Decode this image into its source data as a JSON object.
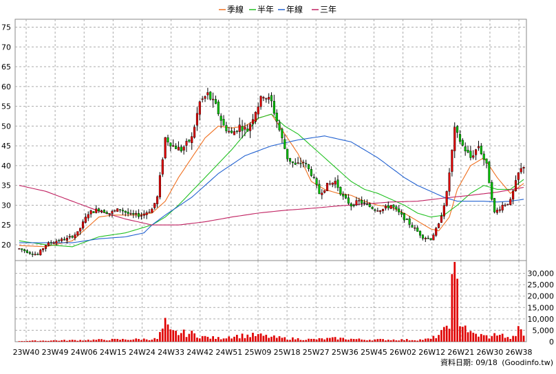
{
  "chart_data": {
    "type": "candlestick",
    "legend": [
      {
        "name": "季線",
        "color": "#f07020"
      },
      {
        "name": "半年",
        "color": "#20c020"
      },
      {
        "name": "年線",
        "color": "#2060d0"
      },
      {
        "name": "三年",
        "color": "#c02060"
      }
    ],
    "x_tick_labels": [
      "23W40",
      "23W49",
      "24W06",
      "24W15",
      "24W24",
      "24W33",
      "24W42",
      "24W51",
      "25W09",
      "25W18",
      "25W27",
      "25W36",
      "25W45",
      "26W02",
      "26W12",
      "26W21",
      "26W30",
      "26W38"
    ],
    "price_axis": {
      "ylim": [
        16,
        77
      ],
      "ticks": [
        20,
        25,
        30,
        35,
        40,
        45,
        50,
        55,
        60,
        65,
        70,
        75
      ]
    },
    "volume_axis": {
      "ylim": [
        0,
        35000
      ],
      "ticks": [
        "0",
        "5,000",
        "10,000",
        "15,000",
        "20,000",
        "25,000",
        "30,000"
      ],
      "tick_values": [
        0,
        5000,
        10000,
        15000,
        20000,
        25000,
        30000
      ]
    },
    "price_keypoints": [
      [
        0,
        19
      ],
      [
        4,
        18
      ],
      [
        7,
        17.5
      ],
      [
        10,
        20
      ],
      [
        14,
        21
      ],
      [
        18,
        21.5
      ],
      [
        22,
        23
      ],
      [
        26,
        28
      ],
      [
        30,
        29
      ],
      [
        34,
        28
      ],
      [
        38,
        29
      ],
      [
        42,
        27.5
      ],
      [
        46,
        27.5
      ],
      [
        50,
        29
      ],
      [
        52,
        32
      ],
      [
        55,
        47
      ],
      [
        58,
        45
      ],
      [
        61,
        44
      ],
      [
        65,
        47
      ],
      [
        68,
        56
      ],
      [
        71,
        58
      ],
      [
        74,
        55
      ],
      [
        77,
        50
      ],
      [
        80,
        48
      ],
      [
        83,
        50
      ],
      [
        86,
        49
      ],
      [
        89,
        54
      ],
      [
        92,
        58
      ],
      [
        95,
        56
      ],
      [
        98,
        49
      ],
      [
        101,
        42
      ],
      [
        104,
        40
      ],
      [
        107,
        41
      ],
      [
        110,
        38
      ],
      [
        113,
        33
      ],
      [
        116,
        35
      ],
      [
        119,
        36
      ],
      [
        122,
        32
      ],
      [
        125,
        30
      ],
      [
        128,
        31
      ],
      [
        131,
        30
      ],
      [
        134,
        29
      ],
      [
        137,
        29
      ],
      [
        140,
        30
      ],
      [
        143,
        28
      ],
      [
        146,
        26
      ],
      [
        149,
        24
      ],
      [
        152,
        22
      ],
      [
        155,
        21.5
      ],
      [
        158,
        25
      ],
      [
        161,
        33
      ],
      [
        164,
        49
      ],
      [
        167,
        45
      ],
      [
        170,
        42
      ],
      [
        173,
        45
      ],
      [
        176,
        40
      ],
      [
        179,
        28
      ],
      [
        182,
        30
      ],
      [
        185,
        31
      ],
      [
        188,
        38
      ],
      [
        190,
        40
      ]
    ],
    "volume_keypoints": [
      [
        0,
        300
      ],
      [
        52,
        1200
      ],
      [
        55,
        7500
      ],
      [
        57,
        4000
      ],
      [
        65,
        3500
      ],
      [
        70,
        2000
      ],
      [
        75,
        1500
      ],
      [
        80,
        2500
      ],
      [
        90,
        2800
      ],
      [
        95,
        2000
      ],
      [
        100,
        1500
      ],
      [
        110,
        1000
      ],
      [
        120,
        1500
      ],
      [
        130,
        900
      ],
      [
        140,
        900
      ],
      [
        150,
        800
      ],
      [
        155,
        1200
      ],
      [
        158,
        3000
      ],
      [
        160,
        4500
      ],
      [
        162,
        10000
      ],
      [
        164,
        35000
      ],
      [
        166,
        10000
      ],
      [
        168,
        7000
      ],
      [
        170,
        3500
      ],
      [
        175,
        2500
      ],
      [
        178,
        2000
      ],
      [
        180,
        4000
      ],
      [
        184,
        1500
      ],
      [
        187,
        2000
      ],
      [
        188,
        7500
      ],
      [
        190,
        3000
      ]
    ],
    "ma_series": {
      "季線": [
        [
          0,
          19.8
        ],
        [
          10,
          19.5
        ],
        [
          20,
          21
        ],
        [
          25,
          24
        ],
        [
          30,
          27
        ],
        [
          35,
          27.5
        ],
        [
          40,
          27.5
        ],
        [
          45,
          27.5
        ],
        [
          50,
          28
        ],
        [
          55,
          31
        ],
        [
          60,
          37
        ],
        [
          65,
          42
        ],
        [
          70,
          47
        ],
        [
          75,
          50
        ],
        [
          80,
          49.5
        ],
        [
          85,
          50
        ],
        [
          90,
          52
        ],
        [
          95,
          53
        ],
        [
          100,
          48
        ],
        [
          105,
          43
        ],
        [
          110,
          36
        ],
        [
          115,
          34
        ],
        [
          120,
          33
        ],
        [
          125,
          32.5
        ],
        [
          130,
          31
        ],
        [
          135,
          30
        ],
        [
          140,
          29.5
        ],
        [
          145,
          28
        ],
        [
          150,
          26
        ],
        [
          155,
          24
        ],
        [
          158,
          23.5
        ],
        [
          162,
          27
        ],
        [
          165,
          34
        ],
        [
          170,
          40
        ],
        [
          175,
          42
        ],
        [
          180,
          37
        ],
        [
          185,
          33
        ],
        [
          190,
          35.5
        ]
      ],
      "半年": [
        [
          0,
          21
        ],
        [
          10,
          20
        ],
        [
          20,
          19.5
        ],
        [
          30,
          22
        ],
        [
          40,
          23
        ],
        [
          50,
          25
        ],
        [
          55,
          27
        ],
        [
          60,
          30
        ],
        [
          70,
          37
        ],
        [
          80,
          44
        ],
        [
          90,
          52
        ],
        [
          95,
          53
        ],
        [
          100,
          50
        ],
        [
          105,
          48
        ],
        [
          110,
          45
        ],
        [
          115,
          42
        ],
        [
          120,
          39
        ],
        [
          125,
          36
        ],
        [
          130,
          34
        ],
        [
          135,
          33
        ],
        [
          140,
          31.5
        ],
        [
          145,
          30
        ],
        [
          150,
          28
        ],
        [
          155,
          27
        ],
        [
          160,
          27.5
        ],
        [
          165,
          30
        ],
        [
          170,
          33
        ],
        [
          175,
          35
        ],
        [
          180,
          34
        ],
        [
          185,
          34
        ],
        [
          190,
          36.5
        ]
      ],
      "年線": [
        [
          0,
          20.5
        ],
        [
          10,
          20.5
        ],
        [
          20,
          20.5
        ],
        [
          30,
          21.5
        ],
        [
          40,
          22
        ],
        [
          47,
          23
        ],
        [
          50,
          25
        ],
        [
          55,
          27.5
        ],
        [
          65,
          32
        ],
        [
          75,
          38
        ],
        [
          85,
          42.5
        ],
        [
          95,
          45
        ],
        [
          105,
          46.5
        ],
        [
          115,
          47.5
        ],
        [
          125,
          46
        ],
        [
          135,
          42
        ],
        [
          140,
          39.5
        ],
        [
          145,
          37
        ],
        [
          150,
          35
        ],
        [
          155,
          33.5
        ],
        [
          160,
          32
        ],
        [
          165,
          31
        ],
        [
          170,
          31
        ],
        [
          175,
          31
        ],
        [
          180,
          30.8
        ],
        [
          185,
          31
        ],
        [
          190,
          31.5
        ]
      ],
      "三年": [
        [
          0,
          35
        ],
        [
          10,
          33.5
        ],
        [
          20,
          31
        ],
        [
          30,
          28.5
        ],
        [
          40,
          26.5
        ],
        [
          50,
          25
        ],
        [
          60,
          25
        ],
        [
          70,
          25.8
        ],
        [
          80,
          27
        ],
        [
          90,
          28
        ],
        [
          100,
          28.7
        ],
        [
          110,
          29.2
        ],
        [
          120,
          29.8
        ],
        [
          130,
          30.3
        ],
        [
          140,
          30.8
        ],
        [
          150,
          31
        ],
        [
          160,
          31.8
        ],
        [
          170,
          32.5
        ],
        [
          180,
          33.3
        ],
        [
          190,
          34.5
        ]
      ]
    }
  },
  "footer": {
    "date_text": "資料日期: 09/18",
    "source_text": "(Goodinfo.tw)"
  }
}
